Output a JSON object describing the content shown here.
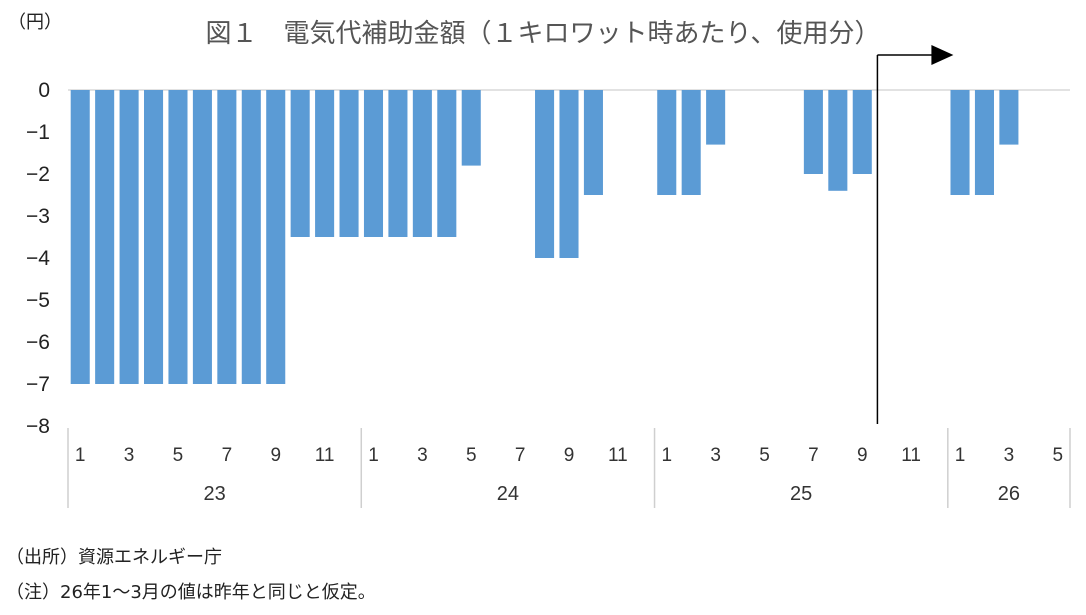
{
  "chart_data": {
    "type": "bar",
    "title": "図１　電気代補助金額（１キロワット時あたり、使用分）",
    "unit_label": "（円）",
    "ylim": [
      -8,
      0
    ],
    "yticks": [
      "0",
      "-1",
      "-2",
      "-3",
      "-4",
      "-5",
      "-6",
      "-7",
      "-8"
    ],
    "x_tick_labels": [
      "1",
      "",
      "3",
      "",
      "5",
      "",
      "7",
      "",
      "9",
      "",
      "11",
      "",
      "1",
      "",
      "3",
      "",
      "5",
      "",
      "7",
      "",
      "9",
      "",
      "11",
      "",
      "1",
      "",
      "3",
      "",
      "5",
      "",
      "7",
      "",
      "9",
      "",
      "11",
      "",
      "1",
      "",
      "3",
      "",
      "5"
    ],
    "years": [
      {
        "label": "23",
        "months": 12
      },
      {
        "label": "24",
        "months": 12
      },
      {
        "label": "25",
        "months": 12
      },
      {
        "label": "26",
        "months": 5
      }
    ],
    "values": [
      -7,
      -7,
      -7,
      -7,
      -7,
      -7,
      -7,
      -7,
      -7,
      -3.5,
      -3.5,
      -3.5,
      -3.5,
      -3.5,
      -3.5,
      -3.5,
      -1.8,
      null,
      null,
      -4,
      -4,
      -2.5,
      null,
      null,
      -2.5,
      -2.5,
      -1.3,
      null,
      null,
      null,
      -2,
      -2.4,
      -2,
      null,
      null,
      null,
      -2.5,
      -2.5,
      -1.3,
      null,
      null
    ],
    "bar_color": "#5B9BD5",
    "forecast_marker": {
      "after_year": "25",
      "after_month": 9,
      "arrow_direction": "right"
    }
  },
  "notes": {
    "source": "（出所）資源エネルギー庁",
    "note": "（注）26年1～3月の値は昨年と同じと仮定。"
  }
}
